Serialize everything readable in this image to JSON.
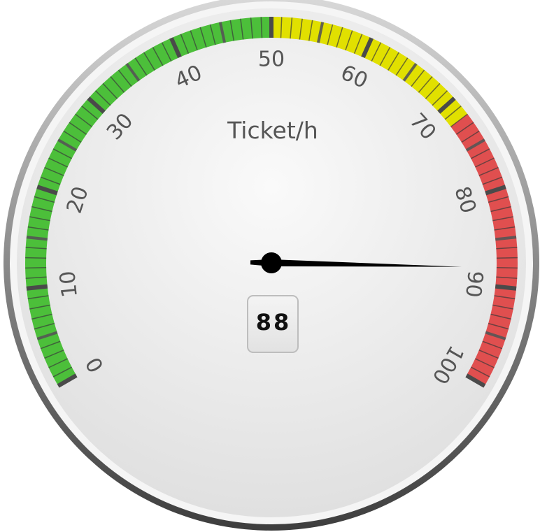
{
  "chart_data": {
    "type": "gauge",
    "unit": "Ticket/h",
    "value": 88,
    "value_display": "88",
    "min": 0,
    "max": 100,
    "major_ticks": [
      "0",
      "10",
      "20",
      "30",
      "40",
      "50",
      "60",
      "70",
      "80",
      "90",
      "100"
    ],
    "minor_ticks_per_major": 10,
    "bands": [
      {
        "from": 0,
        "to": 50,
        "color": "#4cbf3a"
      },
      {
        "from": 50,
        "to": 72,
        "color": "#e1e000"
      },
      {
        "from": 72,
        "to": 100,
        "color": "#e04f4f"
      }
    ],
    "needle_color": "#000000",
    "face_color": "#ececec",
    "bezel_color": "#9a9a9a"
  }
}
